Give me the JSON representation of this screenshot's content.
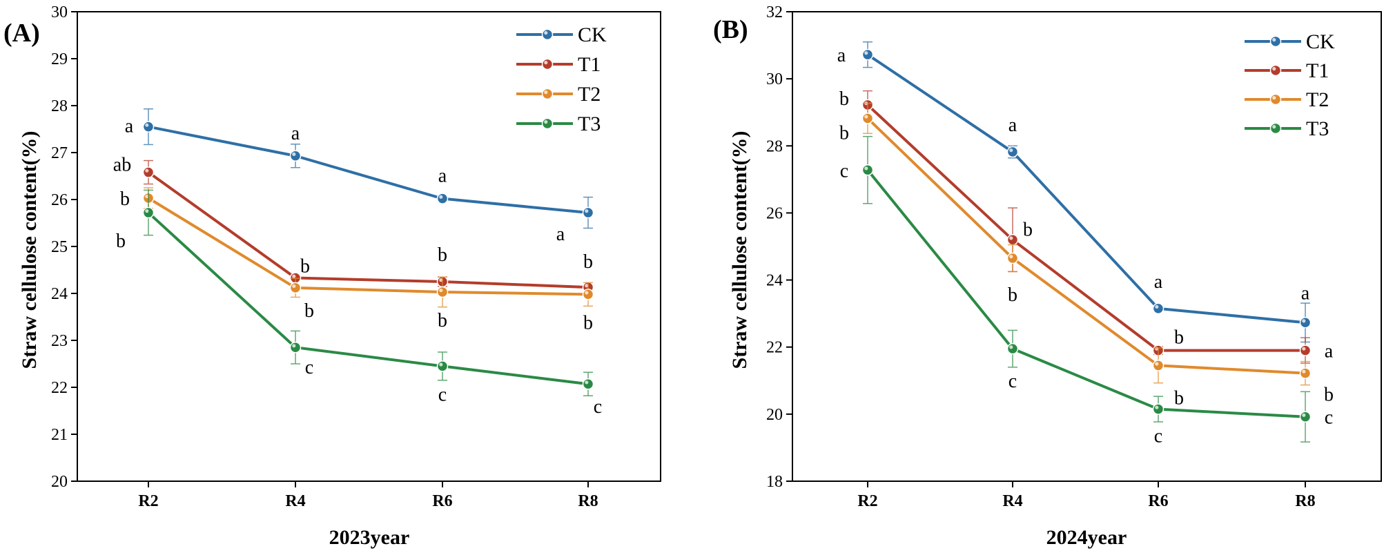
{
  "chart_data": [
    {
      "type": "line",
      "panel_label": "(A)",
      "categories": [
        "R2",
        "R4",
        "R6",
        "R8"
      ],
      "xlabel": "2023year",
      "ylabel": "Straw cellulose content(%)",
      "ylim": [
        20,
        30
      ],
      "yticks": [
        "20",
        "21",
        "22",
        "23",
        "24",
        "25",
        "26",
        "27",
        "28",
        "29",
        "30"
      ],
      "legend_position": "top-right",
      "series": [
        {
          "name": "CK",
          "color": "#2e6fa6",
          "values": [
            27.55,
            26.93,
            26.02,
            25.72
          ],
          "errors": [
            0.38,
            0.25,
            0.05,
            0.33
          ],
          "letters": [
            "a",
            "a",
            "a",
            "a"
          ]
        },
        {
          "name": "T1",
          "color": "#b43c2b",
          "values": [
            26.58,
            24.33,
            24.25,
            24.13
          ],
          "errors": [
            0.25,
            0.06,
            0.1,
            0.06
          ],
          "letters": [
            "ab",
            "b",
            "b",
            "b"
          ]
        },
        {
          "name": "T2",
          "color": "#e08a2c",
          "values": [
            26.03,
            24.12,
            24.03,
            23.98
          ],
          "errors": [
            0.22,
            0.2,
            0.32,
            0.25
          ],
          "letters": [
            "b",
            "b",
            "b",
            "b"
          ]
        },
        {
          "name": "T3",
          "color": "#2a8a45",
          "values": [
            25.72,
            22.85,
            22.45,
            22.07
          ],
          "errors": [
            0.48,
            0.35,
            0.3,
            0.25
          ],
          "letters": [
            "b",
            "c",
            "c",
            "c"
          ]
        }
      ]
    },
    {
      "type": "line",
      "panel_label": "(B)",
      "categories": [
        "R2",
        "R4",
        "R6",
        "R8"
      ],
      "xlabel": "2024year",
      "ylabel": "Straw cellulose content(%)",
      "ylim": [
        18,
        32
      ],
      "yticks": [
        "18",
        "20",
        "22",
        "24",
        "26",
        "28",
        "30",
        "32"
      ],
      "legend_position": "top-right",
      "series": [
        {
          "name": "CK",
          "color": "#2e6fa6",
          "values": [
            30.72,
            27.82,
            23.15,
            22.73
          ],
          "errors": [
            0.38,
            0.18,
            0.05,
            0.58
          ],
          "letters": [
            "a",
            "a",
            "a",
            "a"
          ]
        },
        {
          "name": "T1",
          "color": "#b43c2b",
          "values": [
            29.22,
            25.2,
            21.9,
            21.9
          ],
          "errors": [
            0.42,
            0.95,
            0.12,
            0.38
          ],
          "letters": [
            "b",
            "b",
            "b",
            "a"
          ]
        },
        {
          "name": "T2",
          "color": "#e08a2c",
          "values": [
            28.82,
            24.65,
            21.45,
            21.22
          ],
          "errors": [
            0.45,
            0.4,
            0.52,
            0.35
          ],
          "letters": [
            "b",
            "b",
            "b",
            "b"
          ]
        },
        {
          "name": "T3",
          "color": "#2a8a45",
          "values": [
            27.28,
            21.95,
            20.15,
            19.92
          ],
          "errors": [
            1.0,
            0.55,
            0.38,
            0.75
          ],
          "letters": [
            "c",
            "c",
            "c",
            "c"
          ]
        }
      ]
    }
  ]
}
